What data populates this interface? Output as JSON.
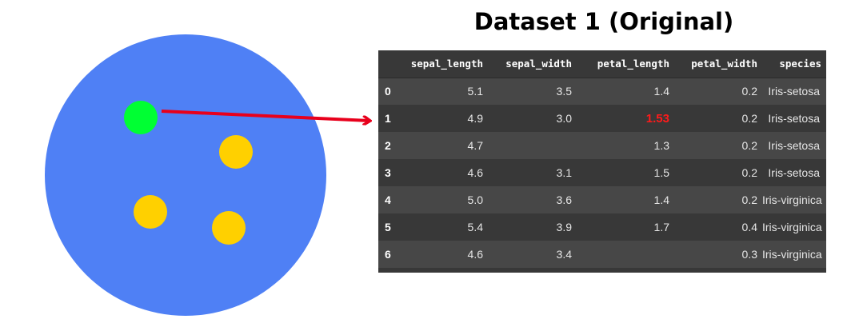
{
  "title": "Dataset 1 (Original)",
  "colors": {
    "circle_fill": "#4f80f5",
    "green_dot": "#00ff33",
    "yellow_dot": "#ffd000",
    "arrow": "#e8001c",
    "table_bg_dark": "#383838",
    "table_bg_light": "#474747",
    "highlight_text": "#ff1a1a"
  },
  "table": {
    "columns": [
      "",
      "sepal_length",
      "sepal_width",
      "petal_length",
      "petal_width",
      "species"
    ],
    "rows": [
      {
        "index": "0",
        "sepal_length": "5.1",
        "sepal_width": "3.5",
        "petal_length": "1.4",
        "petal_width": "0.2",
        "species": "Iris-setosa"
      },
      {
        "index": "1",
        "sepal_length": "4.9",
        "sepal_width": "3.0",
        "petal_length": "1.53",
        "petal_width": "0.2",
        "species": "Iris-setosa"
      },
      {
        "index": "2",
        "sepal_length": "4.7",
        "sepal_width": "",
        "petal_length": "1.3",
        "petal_width": "0.2",
        "species": "Iris-setosa"
      },
      {
        "index": "3",
        "sepal_length": "4.6",
        "sepal_width": "3.1",
        "petal_length": "1.5",
        "petal_width": "0.2",
        "species": "Iris-setosa"
      },
      {
        "index": "4",
        "sepal_length": "5.0",
        "sepal_width": "3.6",
        "petal_length": "1.4",
        "petal_width": "0.2",
        "species": "Iris-virginica"
      },
      {
        "index": "5",
        "sepal_length": "5.4",
        "sepal_width": "3.9",
        "petal_length": "1.7",
        "petal_width": "0.4",
        "species": "Iris-virginica"
      },
      {
        "index": "6",
        "sepal_length": "4.6",
        "sepal_width": "3.4",
        "petal_length": "",
        "petal_width": "0.3",
        "species": "Iris-virginica"
      }
    ]
  }
}
